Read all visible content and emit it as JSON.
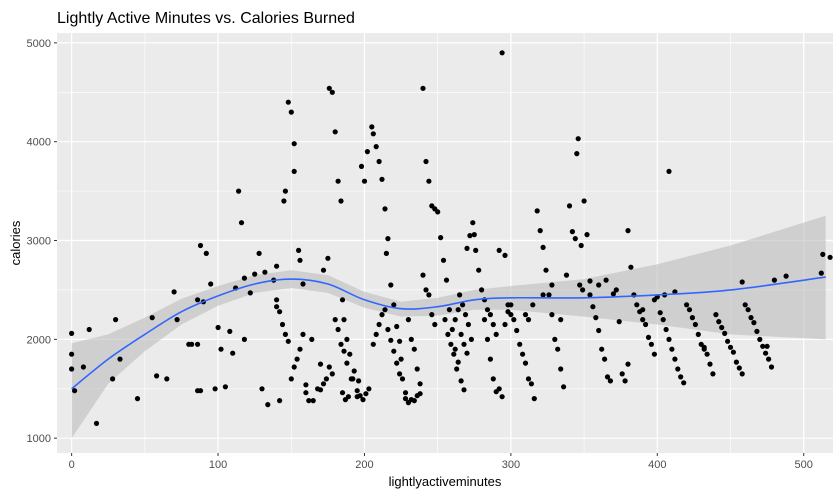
{
  "chart_data": {
    "type": "scatter",
    "title": "Lightly Active Minutes vs. Calories Burned",
    "xlabel": "lightlyactiveminutes",
    "ylabel": "calories",
    "xlim": [
      -10,
      520
    ],
    "ylim": [
      850,
      5100
    ],
    "x_ticks": [
      0,
      100,
      200,
      300,
      400,
      500
    ],
    "y_ticks": [
      1000,
      2000,
      3000,
      4000,
      5000
    ],
    "x_tick_labels": [
      "0",
      "100",
      "200",
      "300",
      "400",
      "500"
    ],
    "y_tick_labels": [
      "1000",
      "2000",
      "3000",
      "4000",
      "5000"
    ],
    "grid": true,
    "colors": {
      "panel": "#ebebeb",
      "grid": "#ffffff",
      "points": "#000000",
      "smooth_line": "#3366ff",
      "ribbon": "#bdbdbd"
    },
    "smooth": {
      "method": "loess",
      "x": [
        0,
        25,
        50,
        75,
        100,
        125,
        150,
        175,
        200,
        225,
        250,
        275,
        300,
        350,
        400,
        450,
        515
      ],
      "y": [
        1500,
        1800,
        2050,
        2280,
        2440,
        2560,
        2610,
        2560,
        2400,
        2310,
        2330,
        2400,
        2420,
        2420,
        2450,
        2500,
        2630
      ],
      "lower": [
        1000,
        1550,
        1880,
        2150,
        2340,
        2470,
        2520,
        2470,
        2320,
        2230,
        2240,
        2300,
        2300,
        2230,
        2150,
        2050,
        2000
      ],
      "upper": [
        1960,
        2050,
        2220,
        2410,
        2540,
        2650,
        2700,
        2650,
        2480,
        2380,
        2420,
        2500,
        2540,
        2610,
        2760,
        2950,
        3250
      ]
    },
    "points": [
      [
        0,
        2060
      ],
      [
        0,
        1850
      ],
      [
        0,
        1700
      ],
      [
        2,
        1480
      ],
      [
        8,
        1720
      ],
      [
        12,
        2100
      ],
      [
        17,
        1150
      ],
      [
        28,
        1600
      ],
      [
        30,
        2200
      ],
      [
        33,
        1800
      ],
      [
        45,
        1400
      ],
      [
        55,
        2220
      ],
      [
        58,
        1630
      ],
      [
        65,
        1600
      ],
      [
        70,
        2480
      ],
      [
        72,
        2200
      ],
      [
        80,
        1950
      ],
      [
        82,
        1950
      ],
      [
        86,
        1480
      ],
      [
        88,
        1480
      ],
      [
        86,
        1950
      ],
      [
        86,
        2400
      ],
      [
        88,
        2950
      ],
      [
        90,
        2380
      ],
      [
        92,
        2870
      ],
      [
        95,
        2560
      ],
      [
        98,
        1500
      ],
      [
        100,
        2120
      ],
      [
        102,
        1900
      ],
      [
        105,
        1520
      ],
      [
        108,
        2080
      ],
      [
        110,
        1860
      ],
      [
        112,
        2520
      ],
      [
        114,
        3500
      ],
      [
        116,
        3180
      ],
      [
        118,
        2620
      ],
      [
        118,
        2000
      ],
      [
        122,
        2470
      ],
      [
        125,
        2660
      ],
      [
        128,
        2870
      ],
      [
        130,
        1500
      ],
      [
        132,
        2680
      ],
      [
        134,
        1340
      ],
      [
        138,
        2600
      ],
      [
        140,
        2400
      ],
      [
        140,
        2740
      ],
      [
        142,
        1380
      ],
      [
        145,
        3400
      ],
      [
        146,
        3500
      ],
      [
        148,
        4400
      ],
      [
        150,
        4300
      ],
      [
        152,
        3980
      ],
      [
        152,
        3700
      ],
      [
        155,
        2900
      ],
      [
        156,
        2800
      ],
      [
        158,
        2560
      ],
      [
        160,
        1460
      ],
      [
        160,
        1540
      ],
      [
        162,
        1380
      ],
      [
        164,
        2000
      ],
      [
        165,
        1380
      ],
      [
        168,
        1500
      ],
      [
        170,
        1750
      ],
      [
        172,
        2700
      ],
      [
        175,
        2820
      ],
      [
        176,
        4540
      ],
      [
        178,
        4500
      ],
      [
        180,
        4100
      ],
      [
        182,
        3600
      ],
      [
        184,
        3400
      ],
      [
        185,
        2400
      ],
      [
        186,
        2200
      ],
      [
        188,
        2000
      ],
      [
        190,
        1850
      ],
      [
        192,
        1600
      ],
      [
        195,
        1420
      ],
      [
        196,
        1580
      ],
      [
        198,
        3750
      ],
      [
        200,
        3600
      ],
      [
        202,
        3900
      ],
      [
        205,
        4150
      ],
      [
        206,
        4080
      ],
      [
        208,
        3950
      ],
      [
        210,
        3800
      ],
      [
        212,
        3620
      ],
      [
        214,
        3320
      ],
      [
        215,
        2870
      ],
      [
        216,
        3020
      ],
      [
        218,
        2550
      ],
      [
        220,
        2350
      ],
      [
        222,
        2130
      ],
      [
        224,
        1980
      ],
      [
        225,
        1800
      ],
      [
        226,
        1600
      ],
      [
        228,
        1460
      ],
      [
        228,
        1400
      ],
      [
        230,
        1360
      ],
      [
        232,
        1390
      ],
      [
        234,
        1380
      ],
      [
        236,
        1430
      ],
      [
        238,
        1450
      ],
      [
        240,
        4540
      ],
      [
        242,
        3800
      ],
      [
        244,
        3600
      ],
      [
        246,
        3350
      ],
      [
        248,
        3320
      ],
      [
        250,
        3290
      ],
      [
        252,
        3030
      ],
      [
        254,
        2800
      ],
      [
        256,
        2600
      ],
      [
        258,
        2300
      ],
      [
        260,
        2100
      ],
      [
        262,
        1900
      ],
      [
        264,
        1770
      ],
      [
        266,
        1580
      ],
      [
        268,
        1490
      ],
      [
        270,
        2920
      ],
      [
        272,
        3050
      ],
      [
        274,
        3180
      ],
      [
        275,
        3060
      ],
      [
        276,
        2900
      ],
      [
        278,
        2700
      ],
      [
        280,
        2500
      ],
      [
        282,
        2200
      ],
      [
        284,
        2000
      ],
      [
        286,
        1800
      ],
      [
        288,
        1600
      ],
      [
        290,
        1470
      ],
      [
        292,
        1500
      ],
      [
        294,
        1420
      ],
      [
        296,
        2150
      ],
      [
        298,
        2280
      ],
      [
        300,
        2350
      ],
      [
        302,
        2200
      ],
      [
        304,
        2090
      ],
      [
        306,
        1950
      ],
      [
        308,
        1850
      ],
      [
        310,
        1760
      ],
      [
        312,
        1600
      ],
      [
        314,
        1550
      ],
      [
        316,
        1400
      ],
      [
        318,
        3300
      ],
      [
        320,
        3100
      ],
      [
        322,
        2930
      ],
      [
        324,
        2700
      ],
      [
        326,
        2450
      ],
      [
        328,
        2250
      ],
      [
        330,
        2000
      ],
      [
        332,
        1900
      ],
      [
        334,
        1700
      ],
      [
        336,
        1520
      ],
      [
        338,
        2650
      ],
      [
        340,
        3350
      ],
      [
        342,
        3090
      ],
      [
        344,
        3020
      ],
      [
        346,
        4030
      ],
      [
        348,
        2950
      ],
      [
        350,
        3400
      ],
      [
        352,
        3060
      ],
      [
        354,
        2590
      ],
      [
        356,
        2330
      ],
      [
        358,
        2220
      ],
      [
        360,
        2090
      ],
      [
        362,
        1900
      ],
      [
        364,
        1800
      ],
      [
        366,
        1620
      ],
      [
        368,
        1580
      ],
      [
        370,
        2460
      ],
      [
        372,
        2500
      ],
      [
        374,
        2180
      ],
      [
        376,
        1650
      ],
      [
        378,
        1580
      ],
      [
        380,
        3100
      ],
      [
        382,
        2730
      ],
      [
        384,
        2450
      ],
      [
        386,
        2350
      ],
      [
        388,
        2280
      ],
      [
        390,
        2200
      ],
      [
        392,
        2150
      ],
      [
        394,
        2020
      ],
      [
        396,
        1950
      ],
      [
        398,
        1850
      ],
      [
        400,
        2430
      ],
      [
        402,
        2270
      ],
      [
        404,
        2200
      ],
      [
        406,
        2100
      ],
      [
        408,
        2000
      ],
      [
        410,
        1900
      ],
      [
        412,
        1800
      ],
      [
        414,
        1700
      ],
      [
        416,
        1620
      ],
      [
        418,
        1560
      ],
      [
        420,
        2350
      ],
      [
        422,
        2300
      ],
      [
        424,
        2220
      ],
      [
        426,
        2150
      ],
      [
        428,
        2050
      ],
      [
        430,
        1950
      ],
      [
        432,
        1900
      ],
      [
        434,
        1850
      ],
      [
        436,
        1750
      ],
      [
        438,
        1650
      ],
      [
        440,
        2250
      ],
      [
        442,
        2180
      ],
      [
        444,
        2120
      ],
      [
        446,
        2060
      ],
      [
        448,
        1980
      ],
      [
        450,
        1920
      ],
      [
        452,
        1870
      ],
      [
        454,
        1770
      ],
      [
        456,
        1710
      ],
      [
        458,
        1650
      ],
      [
        460,
        2350
      ],
      [
        462,
        2300
      ],
      [
        464,
        2220
      ],
      [
        466,
        2170
      ],
      [
        468,
        2080
      ],
      [
        470,
        2000
      ],
      [
        472,
        1930
      ],
      [
        474,
        1860
      ],
      [
        476,
        1800
      ],
      [
        478,
        1720
      ],
      [
        195,
        1480
      ],
      [
        197,
        1430
      ],
      [
        199,
        1390
      ],
      [
        201,
        1450
      ],
      [
        203,
        1500
      ],
      [
        189,
        1420
      ],
      [
        187,
        1390
      ],
      [
        185,
        1460
      ],
      [
        191,
        1600
      ],
      [
        193,
        1680
      ],
      [
        180,
        2200
      ],
      [
        182,
        2100
      ],
      [
        184,
        1950
      ],
      [
        186,
        1880
      ],
      [
        188,
        1760
      ],
      [
        176,
        1720
      ],
      [
        178,
        1650
      ],
      [
        174,
        1600
      ],
      [
        172,
        1550
      ],
      [
        170,
        1490
      ],
      [
        150,
        1600
      ],
      [
        152,
        1720
      ],
      [
        154,
        1800
      ],
      [
        156,
        1900
      ],
      [
        158,
        2050
      ],
      [
        148,
        1980
      ],
      [
        146,
        2050
      ],
      [
        144,
        2150
      ],
      [
        142,
        2280
      ],
      [
        140,
        2330
      ],
      [
        206,
        1950
      ],
      [
        208,
        2050
      ],
      [
        210,
        2150
      ],
      [
        212,
        2250
      ],
      [
        214,
        2300
      ],
      [
        216,
        2100
      ],
      [
        218,
        1990
      ],
      [
        220,
        1880
      ],
      [
        222,
        1760
      ],
      [
        224,
        1650
      ],
      [
        230,
        2200
      ],
      [
        232,
        2000
      ],
      [
        234,
        1900
      ],
      [
        236,
        1700
      ],
      [
        238,
        1550
      ],
      [
        240,
        2650
      ],
      [
        242,
        2500
      ],
      [
        244,
        2450
      ],
      [
        246,
        2250
      ],
      [
        248,
        2150
      ],
      [
        255,
        2200
      ],
      [
        257,
        2050
      ],
      [
        259,
        1950
      ],
      [
        261,
        1850
      ],
      [
        263,
        1700
      ],
      [
        265,
        2450
      ],
      [
        267,
        2350
      ],
      [
        269,
        2250
      ],
      [
        271,
        2150
      ],
      [
        273,
        2000
      ],
      [
        262,
        2200
      ],
      [
        264,
        2300
      ],
      [
        266,
        2050
      ],
      [
        268,
        1950
      ],
      [
        270,
        1860
      ],
      [
        282,
        2400
      ],
      [
        284,
        2300
      ],
      [
        286,
        2250
      ],
      [
        288,
        2150
      ],
      [
        290,
        2050
      ],
      [
        292,
        2900
      ],
      [
        294,
        4900
      ],
      [
        296,
        2850
      ],
      [
        298,
        2350
      ],
      [
        300,
        2250
      ],
      [
        310,
        2250
      ],
      [
        312,
        2200
      ],
      [
        315,
        2350
      ],
      [
        322,
        2450
      ],
      [
        328,
        2550
      ],
      [
        334,
        2200
      ],
      [
        345,
        3880
      ],
      [
        347,
        2550
      ],
      [
        349,
        2500
      ],
      [
        354,
        2450
      ],
      [
        360,
        2550
      ],
      [
        365,
        2600
      ],
      [
        380,
        1750
      ],
      [
        390,
        2300
      ],
      [
        398,
        2400
      ],
      [
        405,
        2450
      ],
      [
        408,
        3700
      ],
      [
        412,
        2480
      ],
      [
        432,
        1920
      ],
      [
        458,
        2580
      ],
      [
        475,
        1930
      ],
      [
        480,
        2600
      ],
      [
        488,
        2640
      ],
      [
        512,
        2670
      ],
      [
        513,
        2860
      ],
      [
        518,
        2830
      ]
    ]
  }
}
